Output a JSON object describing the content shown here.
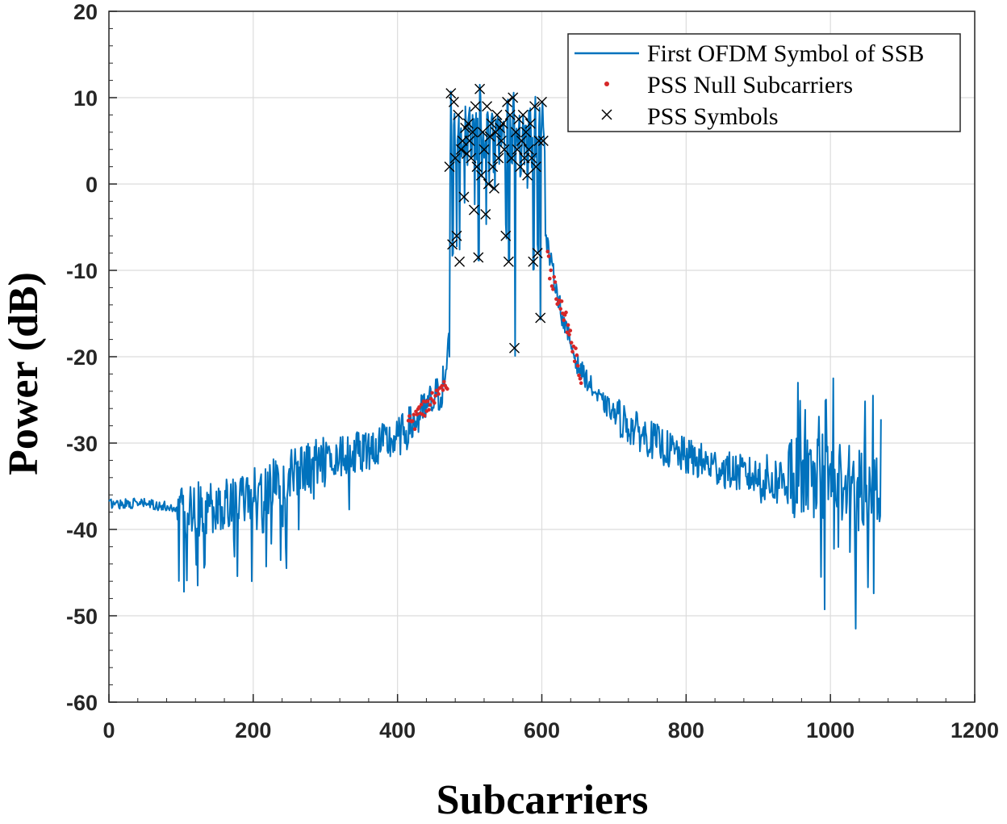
{
  "chart_data": {
    "type": "line",
    "xlabel": "Subcarriers",
    "ylabel": "Power (dB)",
    "xlim": [
      0,
      1200
    ],
    "ylim": [
      -60,
      20
    ],
    "xticks": [
      0,
      200,
      400,
      600,
      800,
      1000,
      1200
    ],
    "yticks": [
      -60,
      -50,
      -40,
      -30,
      -20,
      -10,
      0,
      10,
      20
    ],
    "grid": true,
    "legend_position": "top-right",
    "colors": {
      "line": "#0072BD",
      "nulls": "#D62728",
      "symbols": "#000000",
      "grid": "#DCDCDC",
      "axes": "#262626"
    },
    "series": [
      {
        "name": "First OFDM Symbol of SSB",
        "style": "line",
        "anchors": {
          "x": [
            0,
            50,
            90,
            110,
            150,
            200,
            250,
            300,
            350,
            400,
            430,
            460,
            468,
            472
          ],
          "y": [
            -37,
            -37,
            -37.5,
            -38,
            -37,
            -36,
            -34,
            -32,
            -31,
            -29.5,
            -27,
            -24,
            -22,
            -15
          ]
        },
        "center_band_x": [
          472,
          605
        ],
        "decay_anchors": {
          "x": [
            605,
            615,
            630,
            650,
            680,
            720,
            780,
            850,
            900,
            920,
            940,
            1070
          ],
          "y": [
            -6,
            -10,
            -16,
            -21,
            -25,
            -28,
            -31,
            -33,
            -34,
            -34.5,
            -34,
            -35
          ]
        }
      },
      {
        "name": "PSS Null Subcarriers",
        "style": "dot",
        "segments": [
          {
            "x": [
              415,
              470
            ],
            "y": [
              -28,
              -23
            ]
          },
          {
            "x": [
              608,
              655
            ],
            "y": [
              -9,
              -22
            ]
          }
        ]
      },
      {
        "name": "PSS Symbols",
        "style": "x",
        "x": [
          472,
          474,
          476,
          478,
          480,
          482,
          484,
          486,
          488,
          490,
          492,
          494,
          496,
          498,
          500,
          502,
          504,
          506,
          508,
          510,
          512,
          514,
          516,
          518,
          520,
          522,
          524,
          526,
          528,
          530,
          532,
          534,
          536,
          538,
          540,
          542,
          544,
          546,
          548,
          550,
          552,
          554,
          556,
          558,
          560,
          562,
          564,
          566,
          568,
          570,
          572,
          574,
          576,
          578,
          580,
          582,
          584,
          586,
          588,
          590,
          592,
          594,
          596,
          598,
          600,
          602
        ],
        "y": [
          2,
          10.5,
          -7,
          9.5,
          3,
          -6,
          8,
          -9,
          4,
          5,
          -1.5,
          6.5,
          3.5,
          7,
          5,
          3,
          6,
          -3,
          9,
          2,
          -8.5,
          11,
          1,
          6,
          4,
          -3.5,
          9,
          0,
          5.5,
          7,
          2,
          -0.5,
          6,
          8,
          3,
          6.5,
          5,
          7,
          4,
          -6,
          9.5,
          -9,
          8,
          3,
          10,
          -19,
          6,
          4,
          7.5,
          2,
          5,
          8,
          3,
          6,
          1,
          4,
          7,
          3,
          -9,
          9,
          2,
          -8,
          5,
          -15.5,
          9.5,
          5
        ]
      }
    ]
  }
}
